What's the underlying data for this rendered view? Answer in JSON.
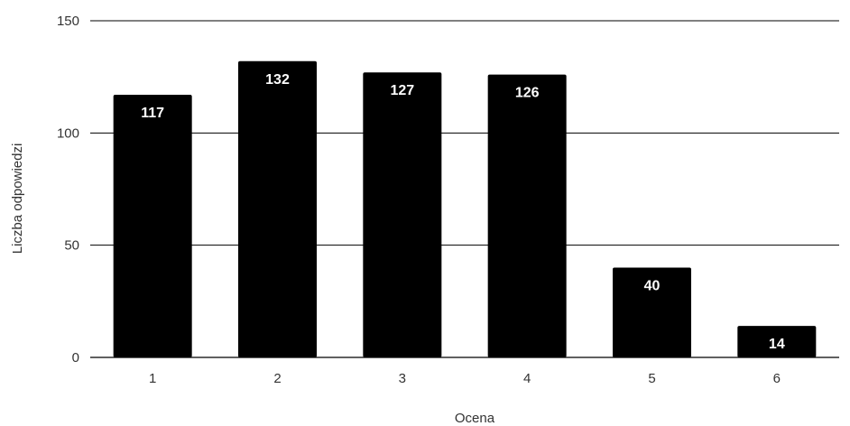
{
  "chart_data": {
    "type": "bar",
    "categories": [
      "1",
      "2",
      "3",
      "4",
      "5",
      "6"
    ],
    "values": [
      117,
      132,
      127,
      126,
      40,
      14
    ],
    "data_labels": [
      "117",
      "132",
      "127",
      "126",
      "40",
      "14"
    ],
    "xlabel": "Ocena",
    "ylabel": "Liczba odpowiedzi",
    "ylim": [
      0,
      150
    ],
    "yticks": [
      0,
      50,
      100,
      150
    ],
    "grid": true,
    "legend": "none",
    "colors": {
      "bar": "#000000",
      "label": "#ffffff",
      "grid": "#000000",
      "text": "#333333"
    }
  }
}
